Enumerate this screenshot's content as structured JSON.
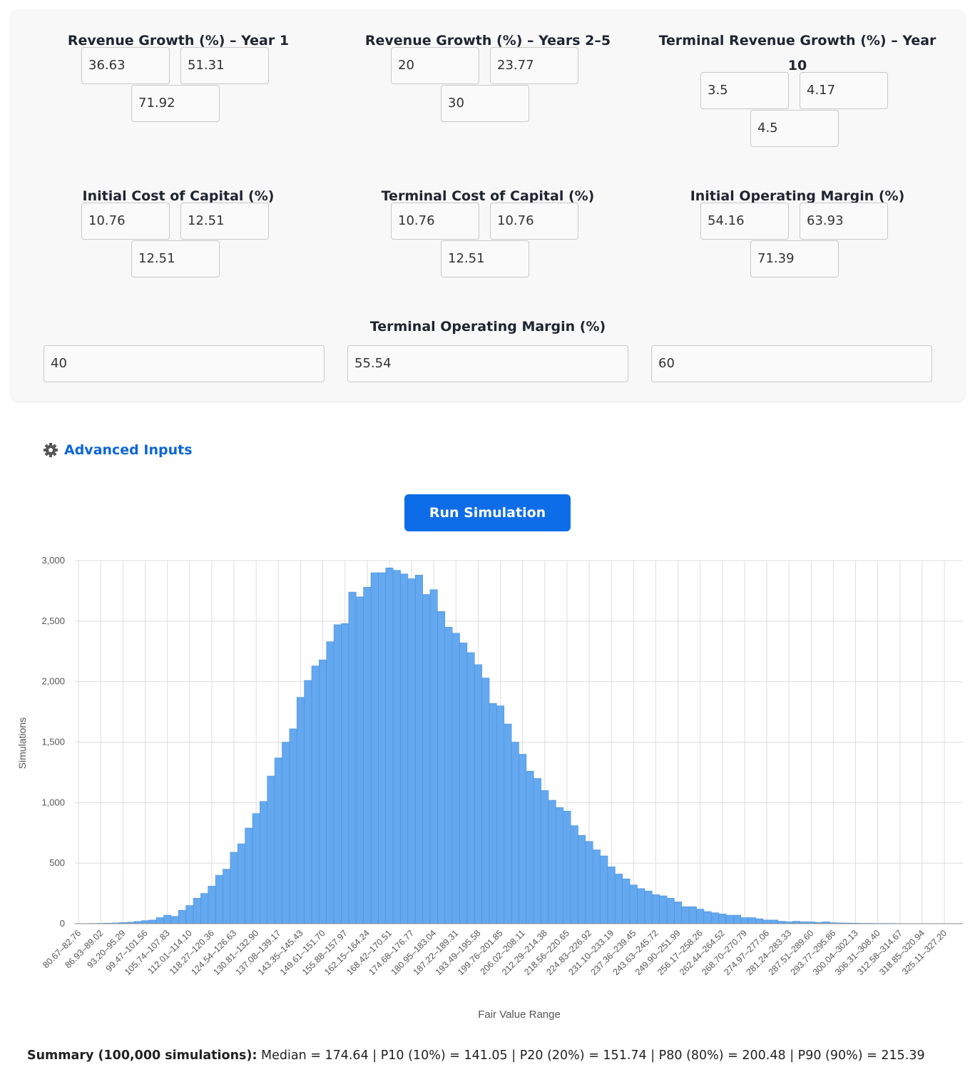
{
  "inputs": [
    {
      "label": "Revenue Growth (%) – Year 1",
      "values": [
        36.63,
        51.31,
        71.92
      ]
    },
    {
      "label": "Revenue Growth (%) – Years 2–5",
      "values": [
        20,
        23.77,
        30
      ]
    },
    {
      "label": "Terminal Revenue Growth (%) – Year 10",
      "values": [
        3.5,
        4.17,
        4.5
      ]
    },
    {
      "label": "Initial Cost of Capital (%)",
      "values": [
        10.76,
        12.51,
        12.51
      ]
    },
    {
      "label": "Terminal Cost of Capital (%)",
      "values": [
        10.76,
        10.76,
        12.51
      ]
    },
    {
      "label": "Initial Operating Margin (%)",
      "values": [
        54.16,
        63.93,
        71.39
      ]
    }
  ],
  "terminal_margin": {
    "label": "Terminal Operating Margin (%)",
    "values": [
      40,
      55.54,
      60
    ]
  },
  "advanced_inputs": "Advanced Inputs",
  "run_button": "Run Simulation",
  "chart_data": {
    "type": "bar",
    "x_label": "Fair Value Range",
    "y_label": "Simulations",
    "color": "#64a8ef",
    "grid": true,
    "categories": [
      "80.67–82.76",
      null,
      null,
      "86.93–89.02",
      null,
      null,
      "93.20–95.29",
      null,
      null,
      "99.47–101.56",
      null,
      null,
      "105.74–107.83",
      null,
      null,
      "112.01–114.10",
      null,
      null,
      "118.27–120.36",
      null,
      null,
      "124.54–126.63",
      null,
      null,
      "130.81–132.90",
      null,
      null,
      "137.08–139.17",
      null,
      null,
      "143.35–145.43",
      null,
      null,
      "149.61–151.70",
      null,
      null,
      "155.88–157.97",
      null,
      null,
      "162.15–164.24",
      null,
      null,
      "168.42–170.51",
      null,
      null,
      "174.68–176.77",
      null,
      null,
      "180.95–183.04",
      null,
      null,
      "187.22–189.31",
      null,
      null,
      "193.49–195.58",
      null,
      null,
      "199.76–201.85",
      null,
      null,
      "206.02–208.11",
      null,
      null,
      "212.29–214.38",
      null,
      null,
      "218.56–220.65",
      null,
      null,
      "224.83–226.92",
      null,
      null,
      "231.10–233.19",
      null,
      null,
      "237.36–239.45",
      null,
      null,
      "243.63–245.72",
      null,
      null,
      "249.90–251.99",
      null,
      null,
      "256.17–258.26",
      null,
      null,
      "262.44–264.52",
      null,
      null,
      "268.70–270.79",
      null,
      null,
      "274.97–277.06",
      null,
      null,
      "281.24–283.33",
      null,
      null,
      "287.51–289.60",
      null,
      null,
      "293.77–295.86",
      null,
      null,
      "300.04–302.13",
      null,
      null,
      "306.31–308.40",
      null,
      null,
      "312.58–314.67",
      null,
      null,
      "318.85–320.94",
      null,
      null,
      "325.11–327.20",
      null,
      null
    ],
    "values": [
      1,
      1,
      2,
      3,
      4,
      6,
      9,
      12,
      18,
      25,
      30,
      50,
      70,
      60,
      110,
      150,
      210,
      250,
      310,
      400,
      450,
      590,
      660,
      790,
      910,
      1010,
      1220,
      1370,
      1500,
      1610,
      1870,
      2010,
      2130,
      2180,
      2330,
      2470,
      2480,
      2740,
      2700,
      2780,
      2900,
      2900,
      2940,
      2920,
      2890,
      2850,
      2880,
      2720,
      2760,
      2580,
      2450,
      2400,
      2320,
      2240,
      2140,
      2030,
      1820,
      1800,
      1650,
      1500,
      1400,
      1260,
      1200,
      1100,
      1020,
      960,
      930,
      810,
      730,
      680,
      610,
      560,
      470,
      410,
      370,
      320,
      290,
      270,
      240,
      230,
      210,
      180,
      140,
      140,
      120,
      100,
      90,
      80,
      70,
      70,
      50,
      50,
      40,
      30,
      30,
      20,
      15,
      20,
      15,
      15,
      10,
      15,
      8,
      6,
      5,
      4,
      3,
      3,
      2,
      2,
      2,
      1,
      1,
      1,
      1,
      1,
      0,
      1,
      0,
      0
    ],
    "ylim": [
      0,
      3000
    ],
    "yticks": [
      0,
      500,
      {
        "value": 1000,
        "label": "1,000"
      },
      {
        "value": 1500,
        "label": "1,500"
      },
      {
        "value": 2000,
        "label": "2,000"
      },
      {
        "value": 2500,
        "label": "2,500"
      },
      {
        "value": 3000,
        "label": "3,000"
      }
    ]
  },
  "summary": {
    "label": "Summary (100,000 simulations):",
    "text": "Median = 174.64 | P10 (10%) = 141.05 | P20 (20%) = 151.74 | P80 (80%) = 200.48 | P90 (90%) = 215.39"
  }
}
